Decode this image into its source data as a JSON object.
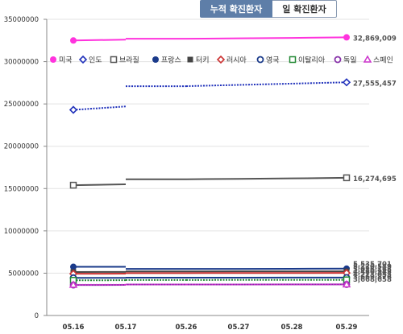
{
  "tabs": [
    {
      "label": "누적 확진환자",
      "active": true
    },
    {
      "label": "일 확진환자",
      "active": false
    }
  ],
  "chart_data": {
    "type": "line",
    "x": [
      "05.16",
      "05.17",
      "05.26",
      "05.27",
      "05.28",
      "05.29"
    ],
    "ylim": [
      0,
      35000000
    ],
    "yticks": [
      "0",
      "5000000",
      "10000000",
      "15000000",
      "20000000",
      "25000000",
      "30000000",
      "35000000"
    ],
    "grid": true,
    "legend_position": "top",
    "series": [
      {
        "name": "미국",
        "color": "#ff33dd",
        "marker": "filled-circle",
        "line": "solid",
        "values": [
          32500000,
          32600000,
          32700000,
          32750000,
          32800000,
          32869009
        ],
        "end_label": "32,869,009"
      },
      {
        "name": "인도",
        "color": "#2233bb",
        "marker": "open-diamond",
        "line": "dotted",
        "values": [
          24300000,
          24700000,
          27100000,
          27250000,
          27400000,
          27555457
        ],
        "end_label": "27,555,457"
      },
      {
        "name": "브라질",
        "color": "#555555",
        "marker": "open-square",
        "line": "solid",
        "values": [
          15400000,
          15500000,
          16100000,
          16150000,
          16200000,
          16274695
        ],
        "end_label": "16,274,695"
      },
      {
        "name": "프랑스",
        "color": "#1a3a8a",
        "marker": "filled-circle",
        "line": "solid",
        "values": [
          5750000,
          5760000,
          5500000,
          5510000,
          5520000,
          5535701
        ],
        "end_label": "5,535,701"
      },
      {
        "name": "터키",
        "color": "#444444",
        "marker": "filled-square",
        "line": "solid",
        "values": [
          5140000,
          5150000,
          5210000,
          5215000,
          5220000,
          5220549
        ],
        "end_label": "5,220,549"
      },
      {
        "name": "러시아",
        "color": "#cc3333",
        "marker": "open-diamond",
        "line": "solid",
        "values": [
          4930000,
          4940000,
          5010000,
          5015000,
          5020000,
          5026168
        ],
        "end_label": "5,026,168"
      },
      {
        "name": "영국",
        "color": "#1a3a8a",
        "marker": "open-circle",
        "line": "solid",
        "values": [
          4450000,
          4450000,
          4470000,
          4475000,
          4480000,
          4480945
        ],
        "end_label": "4,480,945"
      },
      {
        "name": "이탈리아",
        "color": "#228833",
        "marker": "open-square",
        "line": "dotted",
        "values": [
          4160000,
          4170000,
          4200000,
          4205000,
          4210000,
          4213055
        ],
        "end_label": "4,213,055"
      },
      {
        "name": "독일",
        "color": "#8833aa",
        "marker": "open-circle",
        "line": "solid",
        "values": [
          3600000,
          3610000,
          3660000,
          3665000,
          3668000,
          3669876
        ],
        "end_label": "3,669,876"
      },
      {
        "name": "스페인",
        "color": "#cc33cc",
        "marker": "open-triangle",
        "line": "dotted",
        "values": [
          3630000,
          3630000,
          3660000,
          3662000,
          3665000,
          3668658
        ],
        "end_label": "3,668,658"
      }
    ]
  }
}
